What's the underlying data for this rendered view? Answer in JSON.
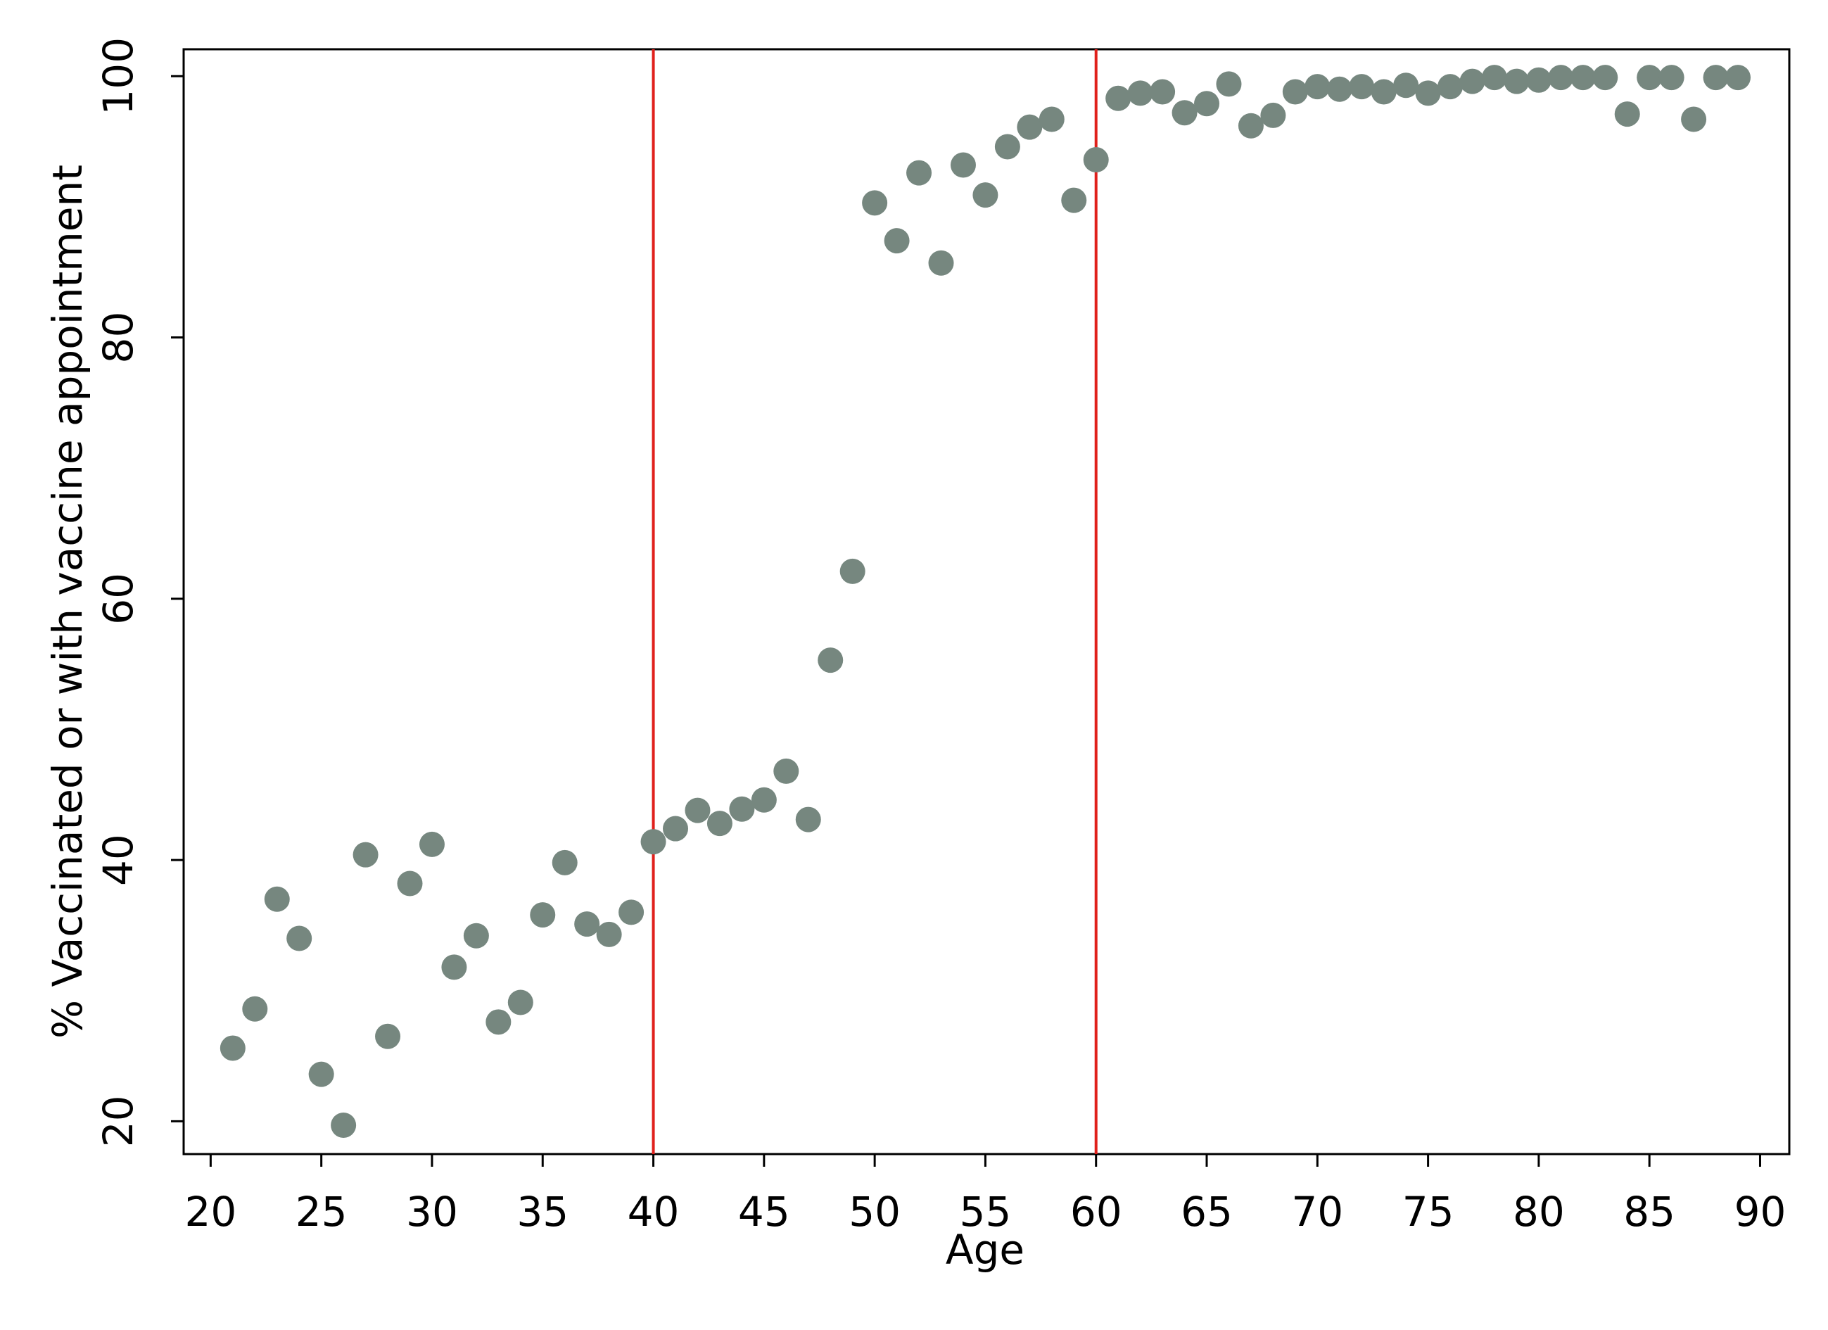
{
  "chart_data": {
    "type": "scatter",
    "x_label": "Age",
    "y_label": "% Vaccinated or with vaccine appointment",
    "x": [
      21,
      22,
      23,
      24,
      25,
      26,
      27,
      28,
      29,
      30,
      31,
      32,
      33,
      34,
      35,
      36,
      37,
      38,
      39,
      40,
      41,
      42,
      43,
      44,
      45,
      46,
      47,
      48,
      49,
      50,
      51,
      52,
      53,
      54,
      55,
      56,
      57,
      58,
      59,
      60,
      61,
      62,
      63,
      64,
      65,
      66,
      67,
      68,
      69,
      70,
      71,
      72,
      73,
      74,
      75,
      76,
      77,
      78,
      79,
      80,
      81,
      82,
      83,
      84,
      85,
      86,
      87,
      88,
      89
    ],
    "values": [
      25.6,
      28.6,
      37.0,
      34.0,
      23.6,
      19.7,
      40.4,
      26.5,
      38.2,
      41.2,
      31.8,
      34.2,
      27.6,
      29.1,
      35.8,
      39.8,
      35.1,
      34.3,
      36.0,
      41.4,
      42.4,
      43.8,
      42.8,
      43.9,
      44.6,
      46.8,
      43.1,
      55.3,
      62.1,
      90.3,
      87.4,
      92.6,
      85.7,
      93.2,
      90.9,
      94.6,
      96.1,
      96.7,
      90.5,
      93.6,
      98.3,
      98.7,
      98.8,
      97.2,
      97.9,
      99.4,
      96.2,
      97.0,
      98.8,
      99.2,
      99.0,
      99.2,
      98.8,
      99.3,
      98.7,
      99.2,
      99.6,
      99.9,
      99.6,
      99.7,
      99.9,
      99.9,
      99.9,
      97.1,
      99.9,
      99.9,
      96.7,
      99.9,
      99.9
    ],
    "color": "#76877f",
    "vlines": [
      40,
      60
    ],
    "vline_color": "#e0201b",
    "xlim": [
      18.78,
      91.32
    ],
    "ylim": [
      17.49,
      102.06
    ],
    "xticks": [
      20,
      25,
      30,
      35,
      40,
      45,
      50,
      55,
      60,
      65,
      70,
      75,
      80,
      85,
      90
    ],
    "yticks": [
      20,
      40,
      60,
      80,
      100
    ]
  }
}
